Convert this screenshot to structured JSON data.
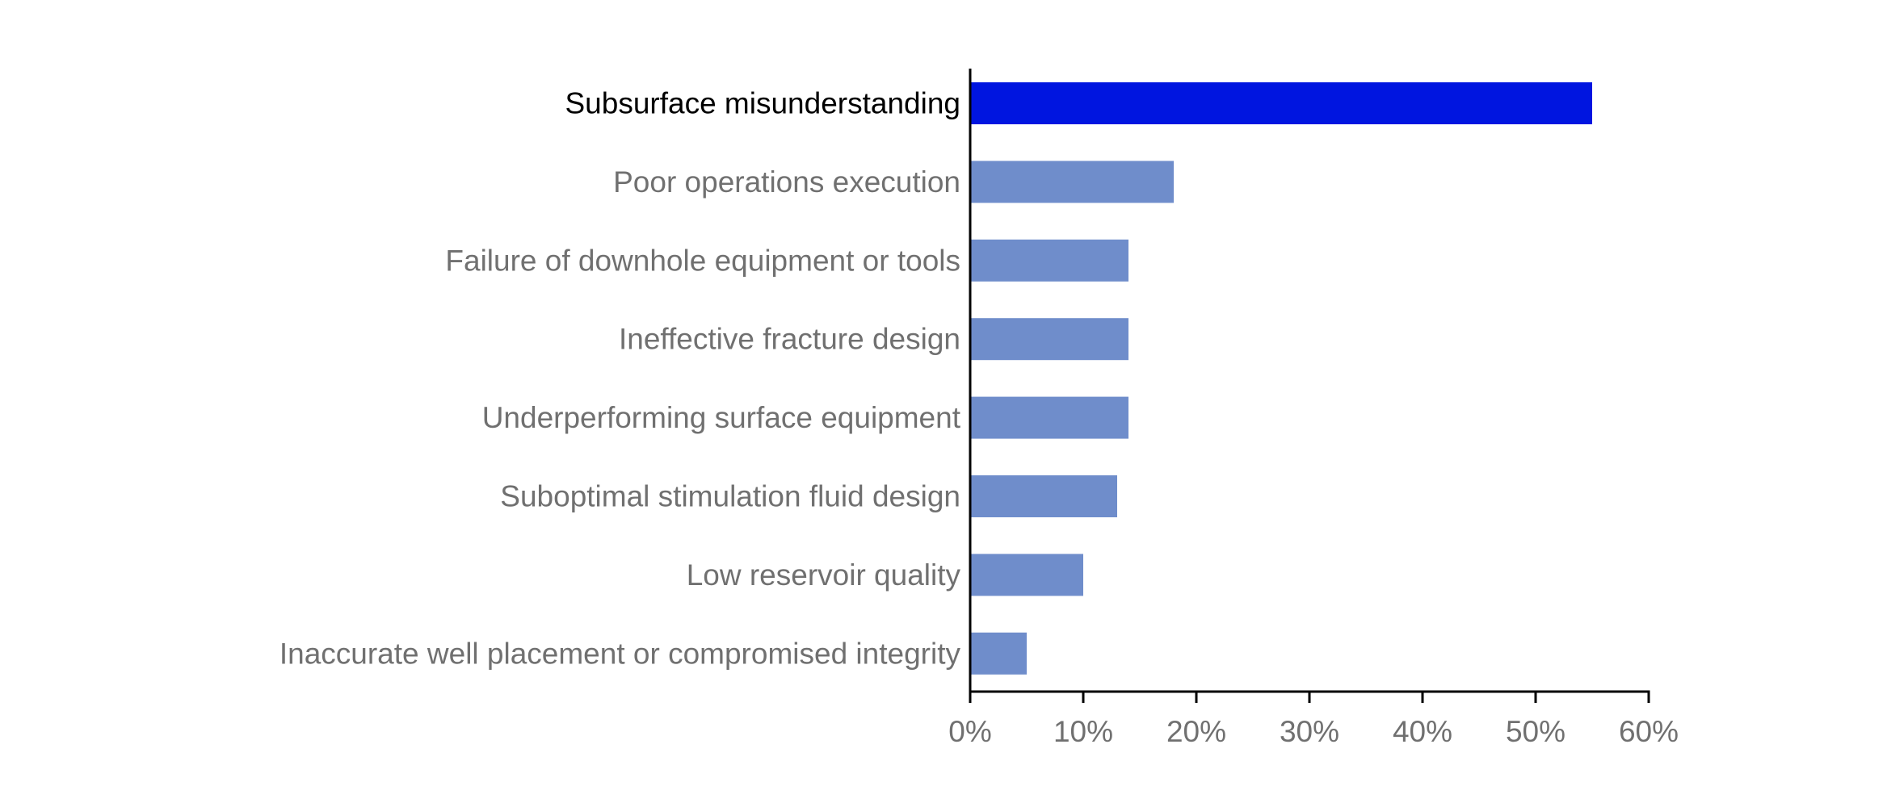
{
  "chart_data": {
    "type": "bar",
    "orientation": "horizontal",
    "title": "",
    "xlabel": "",
    "ylabel": "",
    "categories": [
      "Subsurface misunderstanding",
      "Poor operations execution",
      "Failure of downhole equipment or tools",
      "Ineffective fracture design",
      "Underperforming surface equipment",
      "Suboptimal stimulation fluid design",
      "Low reservoir quality",
      "Inaccurate well placement or compromised integrity"
    ],
    "values": [
      55,
      18,
      14,
      14,
      14,
      13,
      10,
      5
    ],
    "highlighted_index": 0,
    "xlim": [
      0,
      60
    ],
    "xticks": [
      0,
      10,
      20,
      30,
      40,
      50,
      60
    ],
    "tick_suffix": "%",
    "grid": false,
    "legend": "none",
    "colors": {
      "highlight": "#0015E0",
      "bar": "#6F8DCB",
      "axis": "#000000",
      "label": "#707070",
      "highlight_label": "#000000"
    }
  }
}
